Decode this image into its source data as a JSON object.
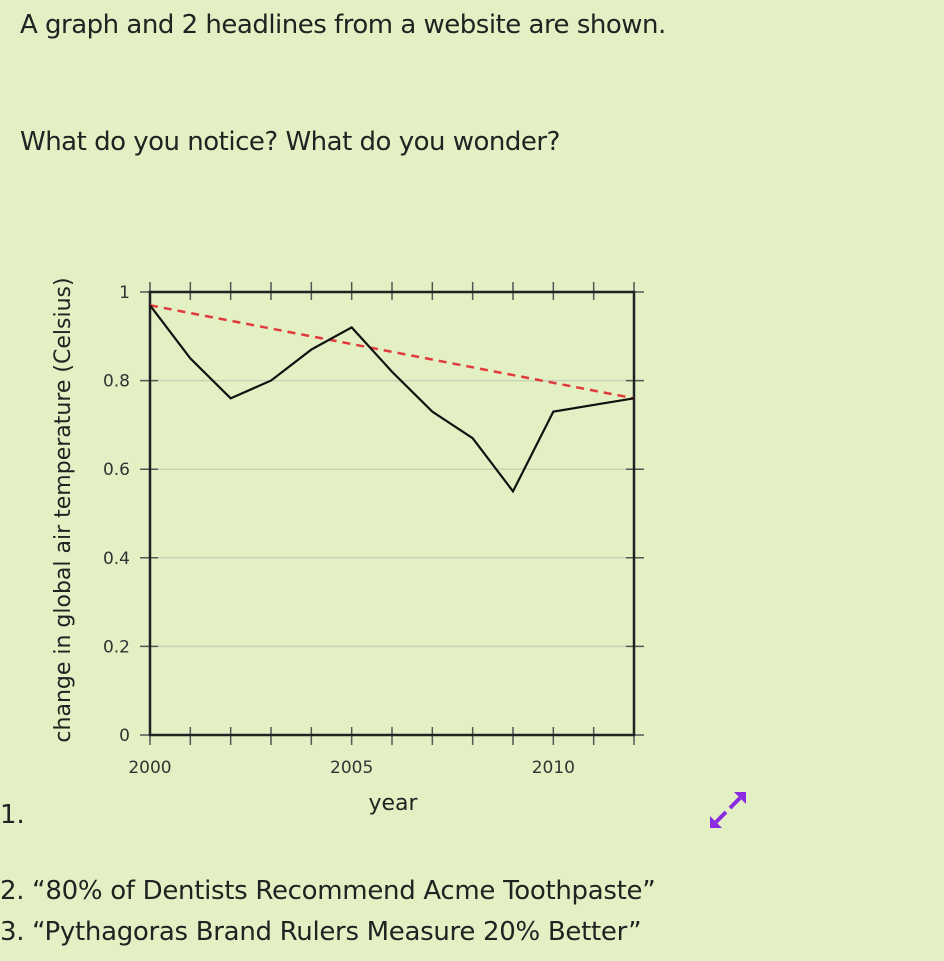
{
  "intro_text": "A graph and 2 headlines from a website are shown.",
  "prompt_text": "What do you notice? What do you wonder?",
  "items": [
    {
      "number": "1."
    },
    {
      "number": "2.",
      "text": "“80% of Dentists Recommend Acme Toothpaste”",
      "full": "2. “80% of Dentists Recommend Acme Toothpaste”"
    },
    {
      "number": "3.",
      "text": "“Pythagoras Brand Rulers Measure 20% Better”",
      "full": "3. “Pythagoras Brand Rulers Measure 20% Better”"
    }
  ],
  "expand_icon": "expand-arrows-icon",
  "colors": {
    "background": "#e3f0c4",
    "data_line": "#111111",
    "trend_line": "#e03a3a",
    "expand_icon": "#8a2be2",
    "gridline": "#c9d3b6"
  },
  "chart_data": {
    "type": "line",
    "title": "",
    "xlabel": "year",
    "ylabel": "change in global air temperature (Celsius)",
    "xlim": [
      2000,
      2012
    ],
    "ylim": [
      0,
      1
    ],
    "x_ticks": [
      2000,
      2005,
      2010
    ],
    "x_tick_labels": [
      "2000",
      "2005",
      "2010"
    ],
    "y_ticks": [
      0,
      0.2,
      0.4,
      0.6,
      0.8,
      1
    ],
    "y_tick_labels": [
      "0",
      "0.2",
      "0.4",
      "0.6",
      "0.8",
      "1"
    ],
    "grid": "horizontal",
    "legend": null,
    "x": [
      2000,
      2001,
      2002,
      2003,
      2004,
      2005,
      2006,
      2007,
      2008,
      2009,
      2010,
      2011,
      2012
    ],
    "series": [
      {
        "name": "temperature change",
        "style": "solid black",
        "values": [
          0.97,
          0.85,
          0.76,
          0.8,
          0.87,
          0.92,
          0.82,
          0.73,
          0.67,
          0.55,
          0.73,
          0.745,
          0.76
        ]
      },
      {
        "name": "trend line",
        "style": "dashed red",
        "x": [
          2000,
          2012
        ],
        "values": [
          0.97,
          0.76
        ]
      }
    ]
  }
}
